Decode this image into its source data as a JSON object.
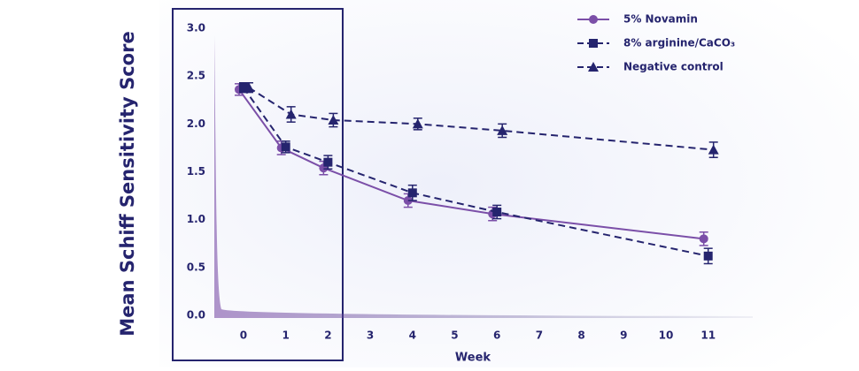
{
  "chart_data": {
    "type": "line",
    "y_label": "Mean Schiff Sensitivity Score",
    "x_label": "Week",
    "x": [
      0,
      1,
      2,
      4,
      6,
      11
    ],
    "xlim": [
      -0.75,
      12
    ],
    "xticks": [
      0,
      1,
      2,
      3,
      4,
      5,
      6,
      7,
      8,
      9,
      10,
      11
    ],
    "ylim": [
      0,
      3
    ],
    "yticks": [
      {
        "value": 0,
        "label": "0.0"
      },
      0.5,
      {
        "value": 1,
        "label": "1.0"
      },
      1.5,
      {
        "value": 2,
        "label": "2.0"
      },
      2.5,
      {
        "value": 3,
        "label": "3.0"
      }
    ],
    "legend": "top-right",
    "series": [
      {
        "name": "5% Novamin",
        "color": "#7b4fa8",
        "marker": "circle",
        "dashed": false,
        "values": [
          2.36,
          1.75,
          1.54,
          1.2,
          1.06,
          0.8
        ],
        "errors": [
          0.06,
          0.07,
          0.07,
          0.07,
          0.07,
          0.07
        ]
      },
      {
        "name": "8% arginine/CaCO₃",
        "color": "#25246e",
        "marker": "square",
        "dashed": true,
        "values": [
          2.38,
          1.76,
          1.6,
          1.28,
          1.08,
          0.62
        ],
        "errors": [
          0.05,
          0.06,
          0.07,
          0.08,
          0.07,
          0.08
        ]
      },
      {
        "name": "Negative control",
        "color": "#25246e",
        "marker": "triangle",
        "dashed": true,
        "values": [
          2.38,
          2.1,
          2.04,
          2.0,
          1.93,
          1.73
        ],
        "errors": [
          0.05,
          0.08,
          0.07,
          0.06,
          0.07,
          0.08
        ]
      }
    ]
  }
}
